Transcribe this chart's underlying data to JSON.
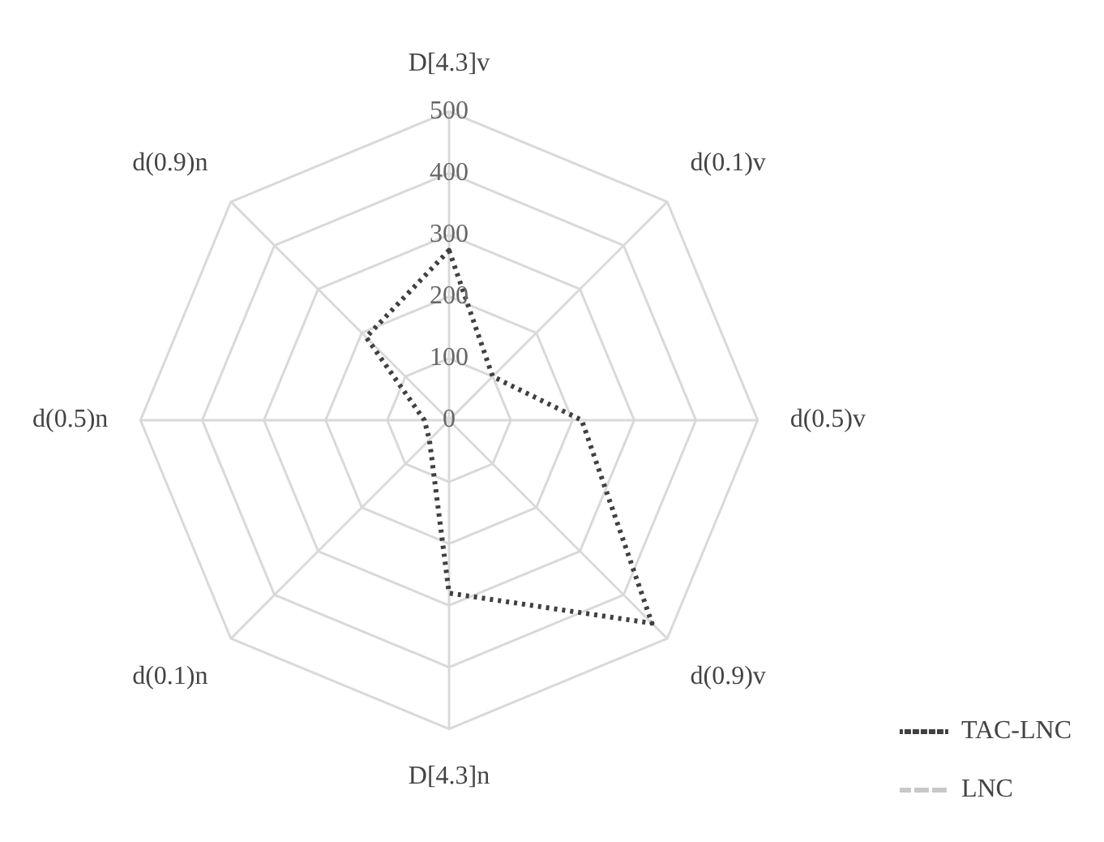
{
  "chart_data": {
    "type": "radar",
    "categories": [
      "D[4.3]v",
      "d(0.1)v",
      "d(0.5)v",
      "d(0.9)v",
      "D[4.3]n",
      "d(0.1)n",
      "d(0.5)n",
      "d(0.9)n"
    ],
    "series": [
      {
        "name": "TAC-LNC",
        "color": "#404040",
        "line_style": "dotted",
        "values": [
          275,
          100,
          215,
          465,
          280,
          45,
          40,
          190
        ]
      },
      {
        "name": "LNC",
        "color": "#c8c8c8",
        "line_style": "dashed",
        "values": [
          null,
          null,
          null,
          null,
          null,
          null,
          null,
          null
        ]
      }
    ],
    "ylim": [
      0,
      500
    ],
    "yticks": [
      0,
      100,
      200,
      300,
      400,
      500
    ],
    "grid": true,
    "legend": "bottom right",
    "marker": "none"
  }
}
